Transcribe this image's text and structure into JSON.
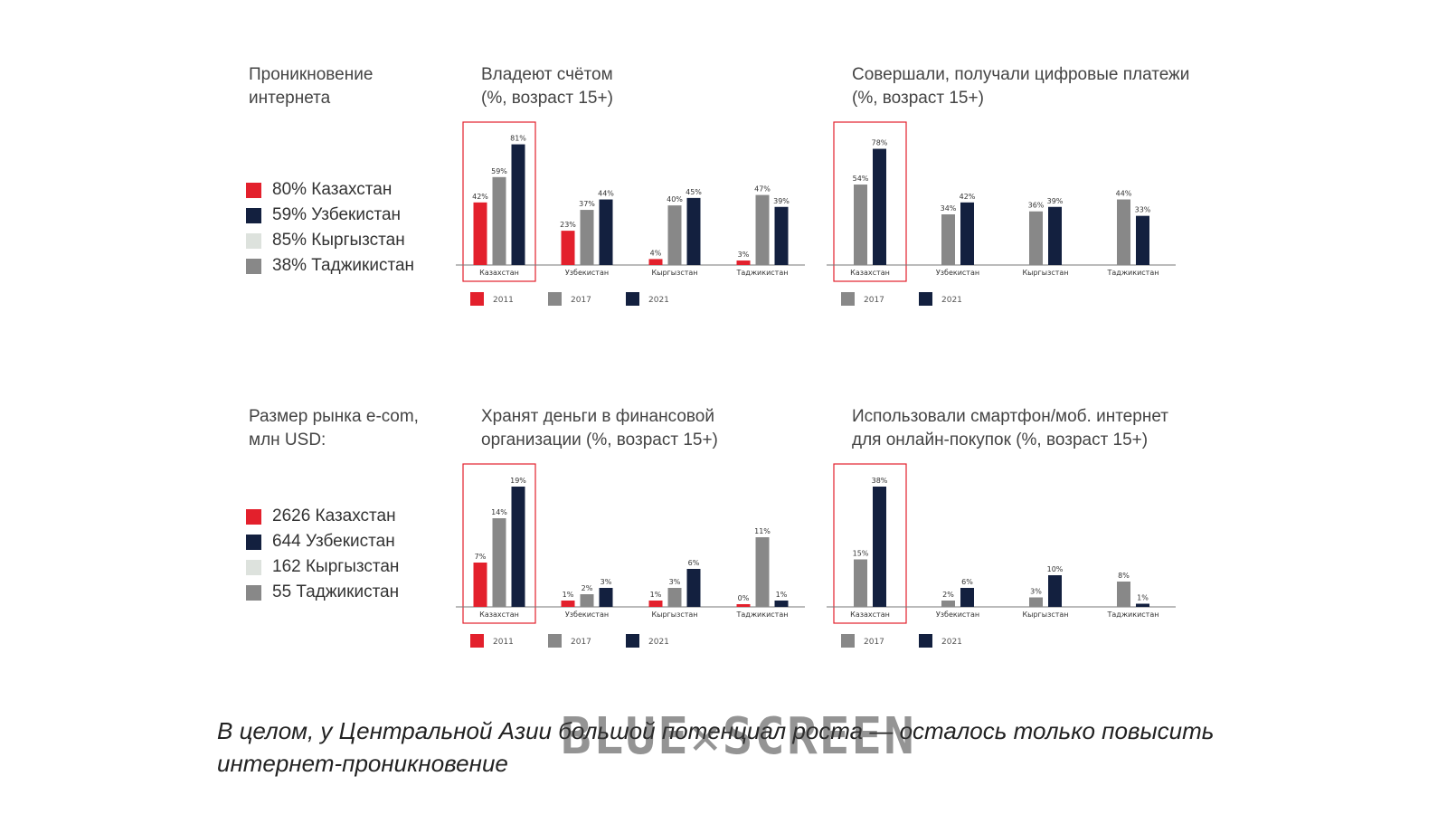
{
  "colors": {
    "2011": "#e3202c",
    "2017": "#888888",
    "2021": "#13203f",
    "highlight": "#e3202c",
    "kz": "#e3202c",
    "uz": "#13203f",
    "kg": "#dde2dd",
    "tj": "#888888"
  },
  "top_left": {
    "title": "Проникновение\nинтернета",
    "items": [
      {
        "text": "80% Казахстан",
        "color": "#e3202c"
      },
      {
        "text": "59% Узбекистан",
        "color": "#13203f"
      },
      {
        "text": "85% Кыргызстан",
        "color": "#dde2dd"
      },
      {
        "text": "38% Таджикистан",
        "color": "#888888"
      }
    ]
  },
  "bottom_left": {
    "title": "Размер рынка e-com,\nмлн USD:",
    "items": [
      {
        "text": "2626 Казахстан",
        "color": "#e3202c"
      },
      {
        "text": "644 Узбекистан",
        "color": "#13203f"
      },
      {
        "text": "162 Кыргызстан",
        "color": "#dde2dd"
      },
      {
        "text": "55 Таджикистан",
        "color": "#888888"
      }
    ]
  },
  "caption": "В целом, у Центральной Азии большой потенциал роста — осталось только повысить интернет-проникновение",
  "watermark": "BLUE✕SCREEN",
  "chart_data": [
    {
      "type": "bar",
      "title": "Владеют счётом\n(%, возраст 15+)",
      "categories": [
        "Казахстан",
        "Узбекистан",
        "Кыргызстан",
        "Таджикистан"
      ],
      "series": [
        {
          "name": "2011",
          "values": [
            42,
            23,
            4,
            3
          ]
        },
        {
          "name": "2017",
          "values": [
            59,
            37,
            40,
            47
          ]
        },
        {
          "name": "2021",
          "values": [
            81,
            44,
            45,
            39
          ]
        }
      ],
      "labels": [
        [
          "42%",
          "23%",
          "4%",
          "3%"
        ],
        [
          "59%",
          "37%",
          "40%",
          "47%"
        ],
        [
          "81%",
          "44%",
          "45%",
          "39%"
        ]
      ],
      "ylim": [
        0,
        85
      ],
      "highlight_category": 0,
      "legend_position": "bottom"
    },
    {
      "type": "bar",
      "title": "Совершали, получали цифровые платежи\n(%, возраст 15+)",
      "categories": [
        "Казахстан",
        "Узбекистан",
        "Кыргызстан",
        "Таджикистан"
      ],
      "series": [
        {
          "name": "2017",
          "values": [
            54,
            34,
            36,
            44
          ]
        },
        {
          "name": "2021",
          "values": [
            78,
            42,
            39,
            33
          ]
        }
      ],
      "labels": [
        [
          "54%",
          "34%",
          "36%",
          "44%"
        ],
        [
          "78%",
          "42%",
          "39%",
          "33%"
        ]
      ],
      "ylim": [
        0,
        85
      ],
      "highlight_category": 0,
      "legend_position": "bottom"
    },
    {
      "type": "bar",
      "title": "Хранят деньги в финансовой\nорганизации (%, возраст 15+)",
      "categories": [
        "Казахстан",
        "Узбекистан",
        "Кыргызстан",
        "Таджикистан"
      ],
      "series": [
        {
          "name": "2011",
          "values": [
            7,
            1,
            1,
            0
          ]
        },
        {
          "name": "2017",
          "values": [
            14,
            2,
            3,
            11
          ]
        },
        {
          "name": "2021",
          "values": [
            19,
            3,
            6,
            1
          ]
        }
      ],
      "labels": [
        [
          "7%",
          "1%",
          "1%",
          "0%"
        ],
        [
          "14%",
          "2%",
          "3%",
          "11%"
        ],
        [
          "19%",
          "3%",
          "6%",
          "1%"
        ]
      ],
      "ylim": [
        0,
        20
      ],
      "highlight_category": 0,
      "legend_position": "bottom"
    },
    {
      "type": "bar",
      "title": "Использовали смартфон/моб. интернет\nдля онлайн-покупок (%, возраст 15+)",
      "categories": [
        "Казахстан",
        "Узбекистан",
        "Кыргызстан",
        "Таджикистан"
      ],
      "series": [
        {
          "name": "2017",
          "values": [
            15,
            2,
            3,
            8
          ]
        },
        {
          "name": "2021",
          "values": [
            38,
            6,
            10,
            1
          ]
        }
      ],
      "labels": [
        [
          "15%",
          "2%",
          "3%",
          "8%"
        ],
        [
          "38%",
          "6%",
          "10%",
          "1%"
        ]
      ],
      "ylim": [
        0,
        40
      ],
      "highlight_category": 0,
      "legend_position": "bottom"
    }
  ]
}
